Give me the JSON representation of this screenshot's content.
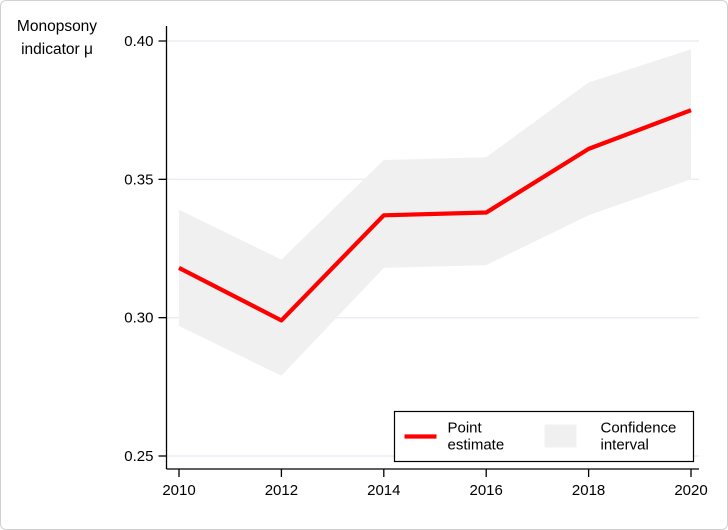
{
  "figure": {
    "y_axis_title": [
      "Monopsony",
      "indicator μ"
    ]
  },
  "legend": {
    "point_label": [
      "Point",
      "estimate"
    ],
    "ci_label": [
      "Confidence",
      "interval"
    ]
  },
  "colors": {
    "line": "#fe0000",
    "band": "#f0f0f0",
    "grid": "#e9eef4",
    "axis": "#000000",
    "legend_border": "#000000",
    "legend_background": "#ffffff",
    "background": "#ffffff"
  },
  "chart_data": {
    "type": "line",
    "title": "Monopsony indicator μ",
    "x": [
      2010,
      2012,
      2014,
      2016,
      2018,
      2020
    ],
    "series": [
      {
        "name": "Point estimate",
        "values": [
          0.318,
          0.299,
          0.337,
          0.338,
          0.361,
          0.375
        ]
      },
      {
        "name": "Confidence interval upper bound",
        "values": [
          0.339,
          0.321,
          0.357,
          0.358,
          0.385,
          0.397
        ]
      },
      {
        "name": "Confidence interval lower bound",
        "values": [
          0.297,
          0.279,
          0.318,
          0.319,
          0.337,
          0.35
        ]
      }
    ],
    "x_ticks": [
      "2010",
      "2012",
      "2014",
      "2016",
      "2018",
      "2020"
    ],
    "y_ticks": [
      "0.25",
      "0.30",
      "0.35",
      "0.40"
    ],
    "y_tick_values": [
      0.25,
      0.3,
      0.35,
      0.4
    ],
    "xlim": [
      2010,
      2020
    ],
    "ylim": [
      0.25,
      0.4
    ],
    "grid": true,
    "legend_position": "bottom-right-inside",
    "xlabel": "",
    "ylabel": "Monopsony indicator μ"
  }
}
